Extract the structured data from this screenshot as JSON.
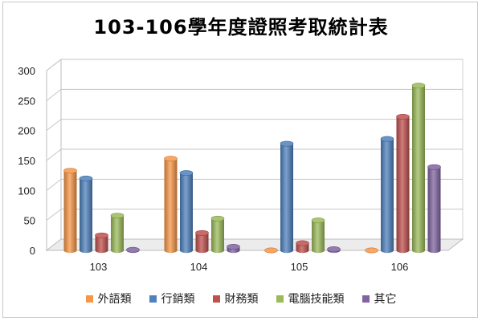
{
  "chart_data": {
    "type": "bar",
    "title": "103-106學年度證照考取統計表",
    "categories": [
      "103",
      "104",
      "105",
      "106"
    ],
    "series": [
      {
        "name": "外語類",
        "color": "#f79646",
        "values": [
          133,
          153,
          0,
          0
        ]
      },
      {
        "name": "行銷類",
        "color": "#4f81bd",
        "values": [
          120,
          129,
          178,
          186
        ]
      },
      {
        "name": "財務類",
        "color": "#c0504d",
        "values": [
          25,
          29,
          12,
          223
        ]
      },
      {
        "name": "電腦技能類",
        "color": "#9bbb59",
        "values": [
          58,
          53,
          50,
          275
        ]
      },
      {
        "name": "其它",
        "color": "#8064a2",
        "values": [
          1,
          6,
          2,
          139
        ]
      }
    ],
    "yaxis": {
      "min": 0,
      "max": 300,
      "ticks": [
        "0",
        "50",
        "100",
        "150",
        "200",
        "250",
        "300"
      ]
    },
    "grid": true,
    "legend_position": "bottom"
  }
}
